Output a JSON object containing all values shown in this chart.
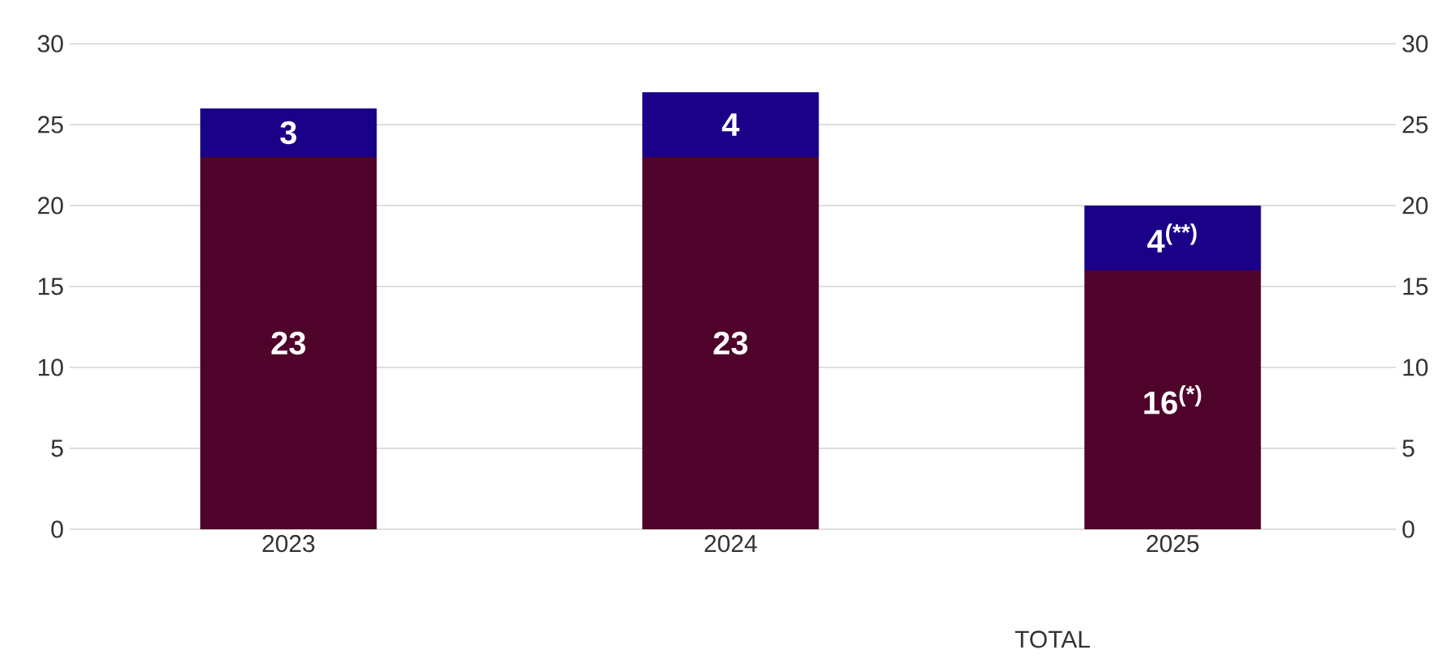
{
  "chart_data": {
    "type": "bar",
    "stacked": true,
    "categories": [
      "2023",
      "2024",
      "2025"
    ],
    "series": [
      {
        "color": "#4f032b",
        "values": [
          23,
          23,
          16
        ],
        "value_labels": [
          "23",
          "23",
          "16$^{(*)}$"
        ]
      },
      {
        "color": "#1b0088",
        "values": [
          3,
          4,
          4
        ],
        "value_labels": [
          "3",
          "4",
          "4$^{(**)}$"
        ]
      }
    ],
    "ylim": [
      0,
      30
    ],
    "yticks": [
      0,
      5,
      10,
      15,
      20,
      25,
      30
    ],
    "y2lim": [
      0,
      30
    ],
    "y2ticks": [
      0,
      5,
      10,
      15,
      20,
      25,
      30
    ],
    "grid": "y",
    "legend": false,
    "annotations": [
      "TOTAL"
    ]
  }
}
